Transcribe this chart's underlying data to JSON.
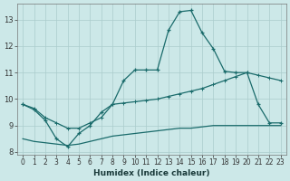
{
  "xlabel": "Humidex (Indice chaleur)",
  "bg_color": "#cce8e8",
  "grid_color": "#aacccc",
  "line_color": "#1a6b6b",
  "xlim": [
    -0.5,
    23.5
  ],
  "ylim": [
    7.9,
    13.6
  ],
  "xticks": [
    0,
    1,
    2,
    3,
    4,
    5,
    6,
    7,
    8,
    9,
    10,
    11,
    12,
    13,
    14,
    15,
    16,
    17,
    18,
    19,
    20,
    21,
    22,
    23
  ],
  "yticks": [
    8,
    9,
    10,
    11,
    12,
    13
  ],
  "line1_x": [
    0,
    1,
    2,
    3,
    4,
    5,
    6,
    7,
    8,
    9,
    10,
    11,
    12,
    13,
    14,
    15,
    16,
    17,
    18,
    19,
    20,
    21,
    22,
    23
  ],
  "line1_y": [
    9.8,
    9.6,
    9.2,
    8.5,
    8.2,
    8.7,
    9.0,
    9.5,
    9.8,
    10.7,
    11.1,
    11.1,
    11.1,
    12.6,
    13.3,
    13.35,
    12.5,
    11.9,
    11.05,
    11.0,
    11.0,
    9.8,
    9.1,
    9.1
  ],
  "line2_x": [
    0,
    1,
    2,
    3,
    4,
    5,
    6,
    7,
    8,
    9,
    10,
    11,
    12,
    13,
    14,
    15,
    16,
    17,
    18,
    19,
    20,
    21,
    22,
    23
  ],
  "line2_y": [
    9.8,
    9.65,
    9.3,
    9.1,
    8.9,
    8.9,
    9.1,
    9.3,
    9.8,
    9.85,
    9.9,
    9.95,
    10.0,
    10.1,
    10.2,
    10.3,
    10.4,
    10.55,
    10.7,
    10.85,
    11.0,
    10.9,
    10.8,
    10.7
  ],
  "line3_x": [
    0,
    1,
    2,
    3,
    4,
    5,
    6,
    7,
    8,
    9,
    10,
    11,
    12,
    13,
    14,
    15,
    16,
    17,
    18,
    19,
    20,
    21,
    22,
    23
  ],
  "line3_y": [
    8.5,
    8.4,
    8.35,
    8.3,
    8.25,
    8.3,
    8.4,
    8.5,
    8.6,
    8.65,
    8.7,
    8.75,
    8.8,
    8.85,
    8.9,
    8.9,
    8.95,
    9.0,
    9.0,
    9.0,
    9.0,
    9.0,
    9.0,
    9.0
  ],
  "xlabel_fontsize": 6.5,
  "tick_fontsize": 5.5
}
